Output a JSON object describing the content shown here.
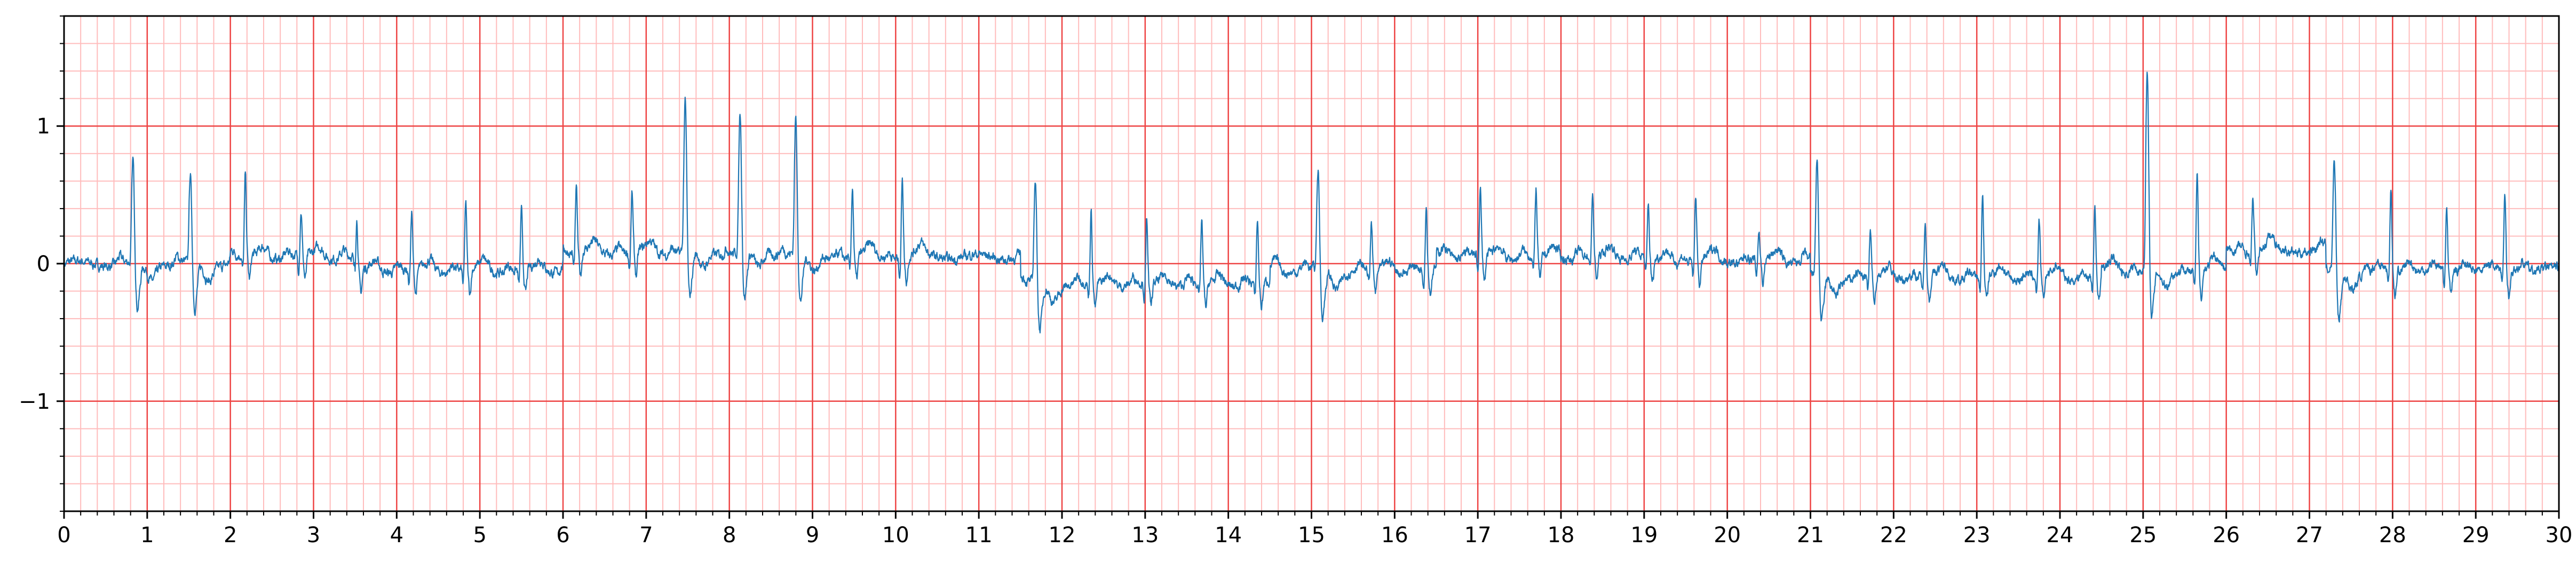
{
  "chart_data": {
    "type": "line",
    "title": "",
    "xlabel": "",
    "ylabel": "",
    "xlim": [
      0,
      30
    ],
    "ylim": [
      -1.8,
      1.8
    ],
    "x_ticks": [
      0,
      1,
      2,
      3,
      4,
      5,
      6,
      7,
      8,
      9,
      10,
      11,
      12,
      13,
      14,
      15,
      16,
      17,
      18,
      19,
      20,
      21,
      22,
      23,
      24,
      25,
      26,
      27,
      28,
      29,
      30
    ],
    "x_tick_labels": [
      "0",
      "1",
      "2",
      "3",
      "4",
      "5",
      "6",
      "7",
      "8",
      "9",
      "10",
      "11",
      "12",
      "13",
      "14",
      "15",
      "16",
      "17",
      "18",
      "19",
      "20",
      "21",
      "22",
      "23",
      "24",
      "25",
      "26",
      "27",
      "28",
      "29",
      "30"
    ],
    "y_ticks": [
      -1,
      0,
      1
    ],
    "y_tick_labels": [
      "−1",
      "0",
      "1"
    ],
    "grid": {
      "major_x": 1,
      "major_y": 1,
      "minor": 0.2,
      "color_major": "#ee4444",
      "color_minor": "#ffbcbc"
    },
    "line_color": "#1f77b4",
    "beats": [
      {
        "t": 0.83,
        "amp": 0.82
      },
      {
        "t": 1.52,
        "amp": 0.72
      },
      {
        "t": 2.18,
        "amp": 0.58
      },
      {
        "t": 2.85,
        "amp": 0.32
      },
      {
        "t": 3.52,
        "amp": 0.36
      },
      {
        "t": 4.18,
        "amp": 0.4
      },
      {
        "t": 4.83,
        "amp": 0.48
      },
      {
        "t": 5.5,
        "amp": 0.42
      },
      {
        "t": 6.16,
        "amp": 0.45
      },
      {
        "t": 6.83,
        "amp": 0.42
      },
      {
        "t": 7.47,
        "amp": 1.18
      },
      {
        "t": 8.13,
        "amp": 1.1
      },
      {
        "t": 8.8,
        "amp": 1.07
      },
      {
        "t": 9.48,
        "amp": 0.51
      },
      {
        "t": 10.08,
        "amp": 0.6
      },
      {
        "t": 11.68,
        "amp": 0.82
      },
      {
        "t": 12.35,
        "amp": 0.51
      },
      {
        "t": 13.02,
        "amp": 0.45
      },
      {
        "t": 13.68,
        "amp": 0.45
      },
      {
        "t": 14.35,
        "amp": 0.45
      },
      {
        "t": 15.08,
        "amp": 0.8
      },
      {
        "t": 15.72,
        "amp": 0.32
      },
      {
        "t": 16.38,
        "amp": 0.45
      },
      {
        "t": 17.03,
        "amp": 0.48
      },
      {
        "t": 17.7,
        "amp": 0.48
      },
      {
        "t": 18.38,
        "amp": 0.45
      },
      {
        "t": 19.05,
        "amp": 0.4
      },
      {
        "t": 19.62,
        "amp": 0.48
      },
      {
        "t": 20.38,
        "amp": 0.2
      },
      {
        "t": 21.08,
        "amp": 0.92
      },
      {
        "t": 21.72,
        "amp": 0.32
      },
      {
        "t": 22.38,
        "amp": 0.42
      },
      {
        "t": 23.07,
        "amp": 0.58
      },
      {
        "t": 23.75,
        "amp": 0.38
      },
      {
        "t": 24.42,
        "amp": 0.5
      },
      {
        "t": 25.05,
        "amp": 1.52
      },
      {
        "t": 25.65,
        "amp": 0.7
      },
      {
        "t": 26.32,
        "amp": 0.38
      },
      {
        "t": 27.3,
        "amp": 0.88
      },
      {
        "t": 27.98,
        "amp": 0.6
      },
      {
        "t": 28.65,
        "amp": 0.45
      },
      {
        "t": 29.35,
        "amp": 0.55
      }
    ],
    "wide_beats": [
      0.83,
      1.52,
      7.47,
      8.13,
      8.8,
      11.68,
      15.08,
      21.08,
      25.05,
      27.3
    ],
    "baseline_segments": [
      {
        "x": [
          0,
          2.0
        ],
        "y": 0.0
      },
      {
        "x": [
          2.0,
          3.5
        ],
        "y": 0.05
      },
      {
        "x": [
          3.5,
          6.0
        ],
        "y": -0.05
      },
      {
        "x": [
          6.0,
          8.8
        ],
        "y": 0.08
      },
      {
        "x": [
          8.8,
          11.5
        ],
        "y": 0.05
      },
      {
        "x": [
          11.5,
          14.5
        ],
        "y": -0.15
      },
      {
        "x": [
          14.5,
          16.5
        ],
        "y": -0.05
      },
      {
        "x": [
          16.5,
          19.0
        ],
        "y": 0.05
      },
      {
        "x": [
          19.0,
          21.0
        ],
        "y": 0.02
      },
      {
        "x": [
          21.0,
          24.5
        ],
        "y": -0.1
      },
      {
        "x": [
          24.5,
          26.0
        ],
        "y": -0.05
      },
      {
        "x": [
          26.0,
          27.2
        ],
        "y": 0.1
      },
      {
        "x": [
          27.2,
          30.0
        ],
        "y": -0.05
      }
    ]
  }
}
